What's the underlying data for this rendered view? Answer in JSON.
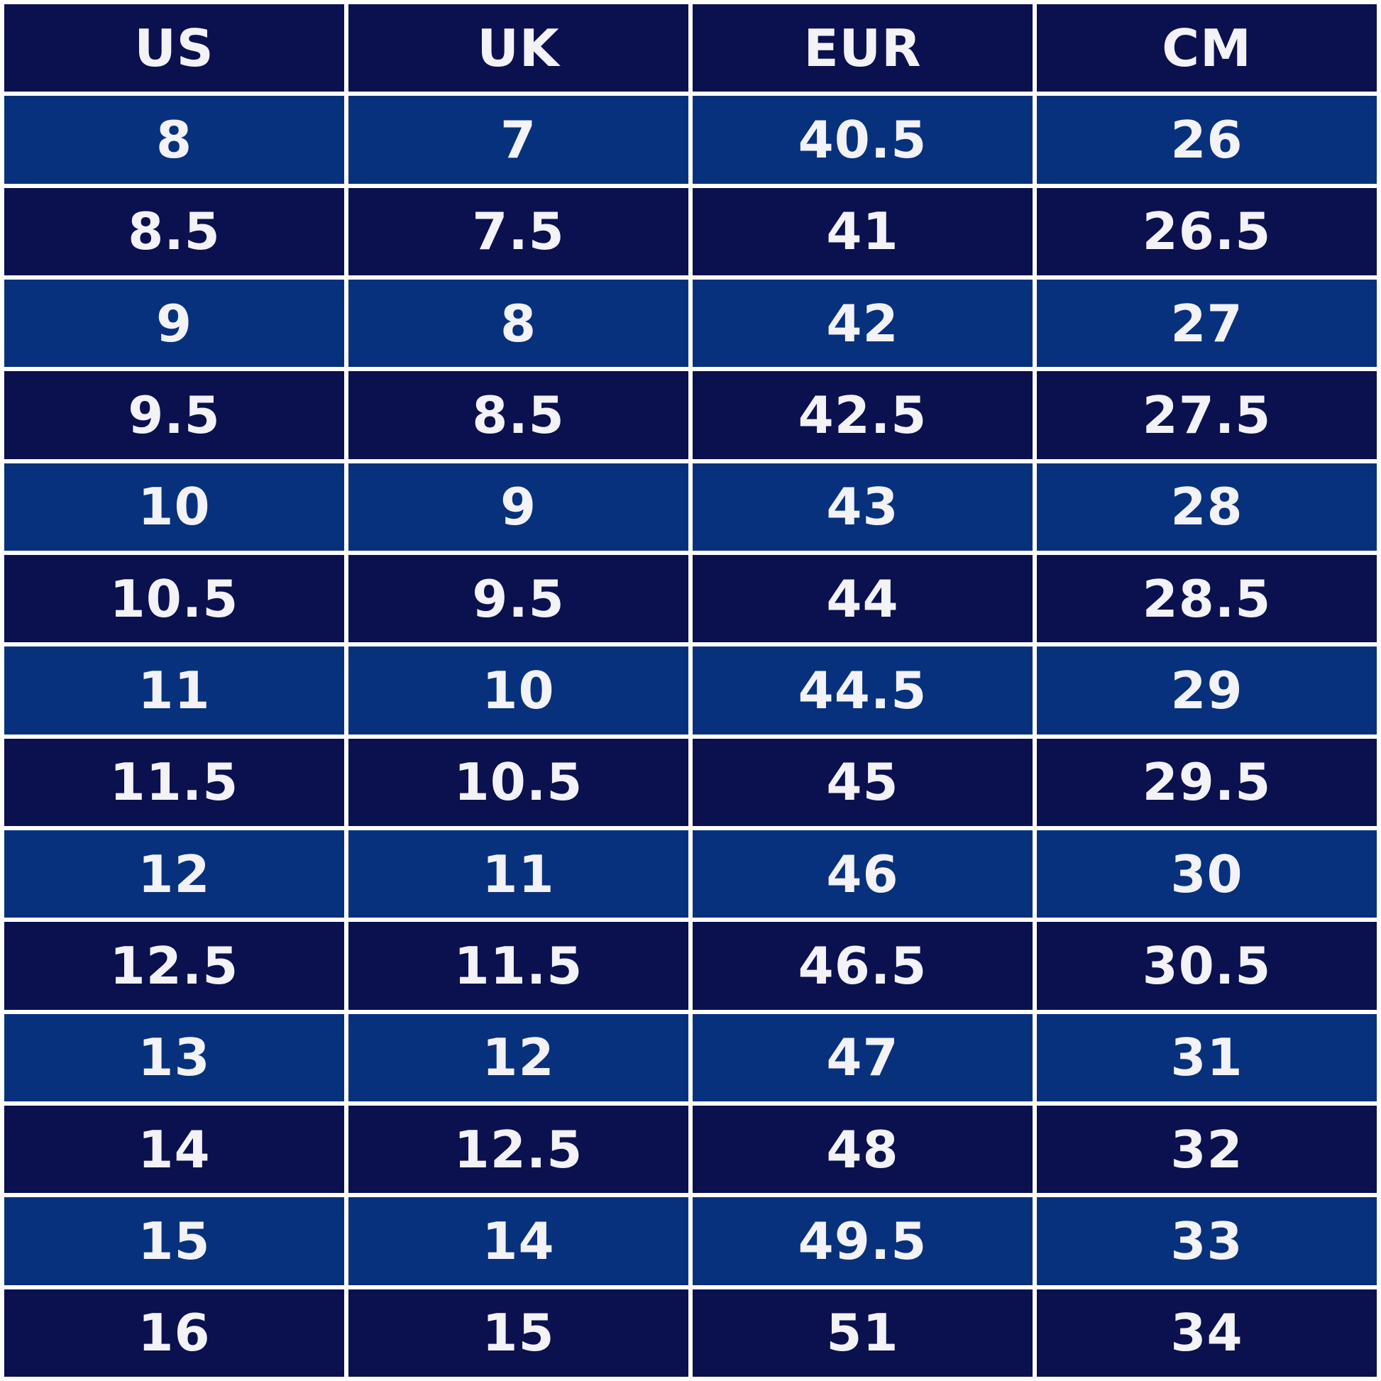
{
  "table": {
    "header": [
      "US",
      "UK",
      "EUR",
      "CM"
    ],
    "rows": [
      [
        "8",
        "7",
        "40.5",
        "26"
      ],
      [
        "8.5",
        "7.5",
        "41",
        "26.5"
      ],
      [
        "9",
        "8",
        "42",
        "27"
      ],
      [
        "9.5",
        "8.5",
        "42.5",
        "27.5"
      ],
      [
        "10",
        "9",
        "43",
        "28"
      ],
      [
        "10.5",
        "9.5",
        "44",
        "28.5"
      ],
      [
        "11",
        "10",
        "44.5",
        "29"
      ],
      [
        "11.5",
        "10.5",
        "45",
        "29.5"
      ],
      [
        "12",
        "11",
        "46",
        "30"
      ],
      [
        "12.5",
        "11.5",
        "46.5",
        "30.5"
      ],
      [
        "13",
        "12",
        "47",
        "31"
      ],
      [
        "14",
        "12.5",
        "48",
        "32"
      ],
      [
        "15",
        "14",
        "49.5",
        "33"
      ],
      [
        "16",
        "15",
        "51",
        "34"
      ]
    ]
  }
}
